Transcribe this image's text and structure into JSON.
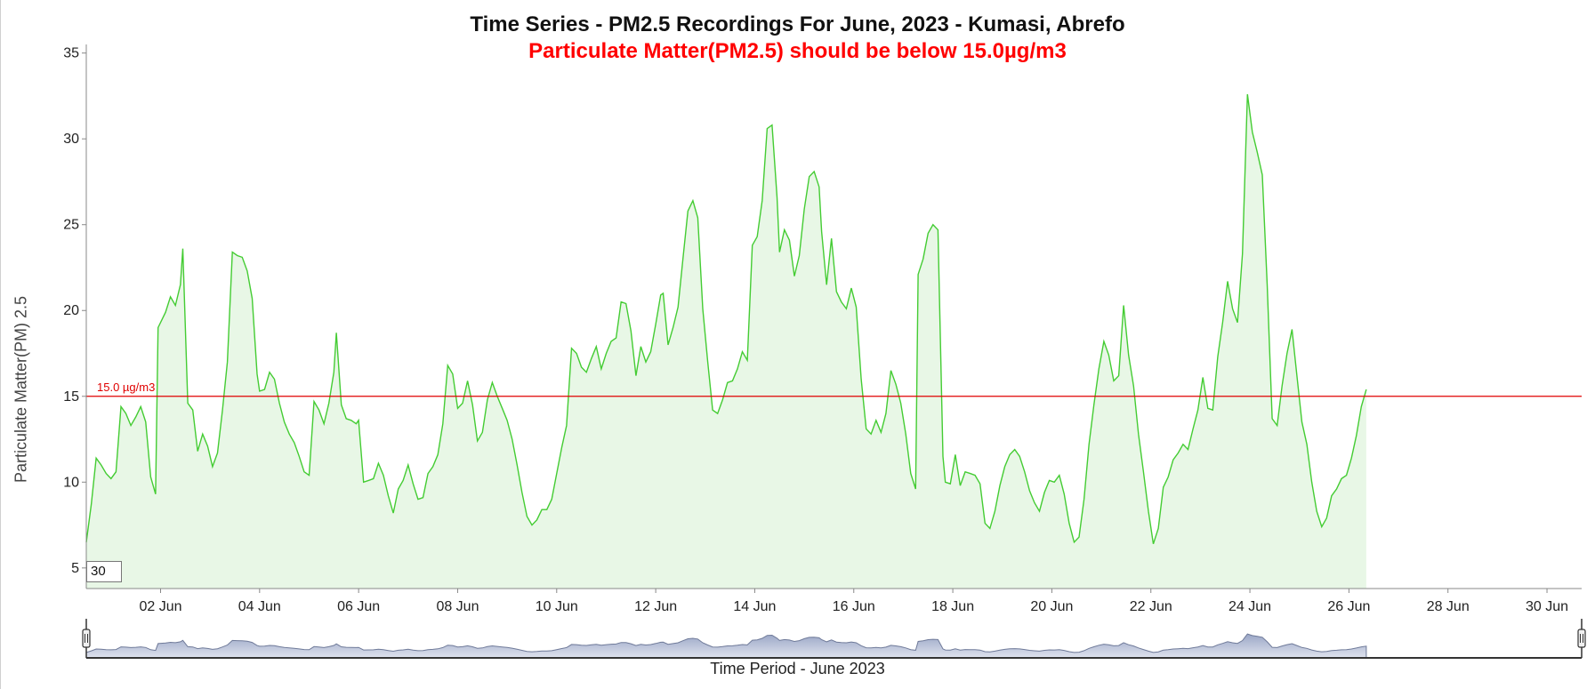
{
  "chart_data": {
    "type": "area",
    "title": "Time Series - PM2.5 Recordings For June, 2023 - Kumasi, Abrefo",
    "subtitle": "Particulate Matter(PM2.5) should be below 15.0µg/m3",
    "xlabel": "Time Period - June 2023",
    "ylabel": "Particulate Matter(PM) 2.5",
    "x_range_days": [
      0.5,
      30.7
    ],
    "ylim": [
      3.8,
      35.5
    ],
    "y_ticks": [
      5,
      10,
      15,
      20,
      25,
      30,
      35
    ],
    "x_tick_labels": [
      {
        "day": 2,
        "label": "02 Jun"
      },
      {
        "day": 4,
        "label": "04 Jun"
      },
      {
        "day": 6,
        "label": "06 Jun"
      },
      {
        "day": 8,
        "label": "08 Jun"
      },
      {
        "day": 10,
        "label": "10 Jun"
      },
      {
        "day": 12,
        "label": "12 Jun"
      },
      {
        "day": 14,
        "label": "14 Jun"
      },
      {
        "day": 16,
        "label": "16 Jun"
      },
      {
        "day": 18,
        "label": "18 Jun"
      },
      {
        "day": 20,
        "label": "20 Jun"
      },
      {
        "day": 22,
        "label": "22 Jun"
      },
      {
        "day": 24,
        "label": "24 Jun"
      },
      {
        "day": 26,
        "label": "26 Jun"
      },
      {
        "day": 28,
        "label": "28 Jun"
      },
      {
        "day": 30,
        "label": "30 Jun"
      }
    ],
    "threshold": {
      "value": 15.0,
      "label": "15.0 µg/m3",
      "color": "#e00000"
    },
    "series": [
      {
        "line_color": "#44cc33",
        "fill_color": "#e8f7e6",
        "points": [
          [
            0.5,
            6.5
          ],
          [
            0.6,
            8.7
          ],
          [
            0.7,
            11.4
          ],
          [
            0.8,
            11.0
          ],
          [
            0.9,
            10.5
          ],
          [
            1.0,
            10.2
          ],
          [
            1.1,
            10.6
          ],
          [
            1.2,
            14.4
          ],
          [
            1.3,
            14.0
          ],
          [
            1.4,
            13.3
          ],
          [
            1.5,
            13.8
          ],
          [
            1.6,
            14.4
          ],
          [
            1.7,
            13.5
          ],
          [
            1.8,
            10.3
          ],
          [
            1.9,
            9.3
          ],
          [
            1.95,
            19.0
          ],
          [
            2.1,
            19.9
          ],
          [
            2.2,
            20.8
          ],
          [
            2.3,
            20.3
          ],
          [
            2.4,
            21.5
          ],
          [
            2.45,
            23.6
          ],
          [
            2.55,
            14.6
          ],
          [
            2.65,
            14.2
          ],
          [
            2.75,
            11.8
          ],
          [
            2.85,
            12.8
          ],
          [
            2.95,
            12.1
          ],
          [
            3.05,
            10.9
          ],
          [
            3.15,
            11.7
          ],
          [
            3.25,
            14.2
          ],
          [
            3.35,
            17.0
          ],
          [
            3.45,
            23.4
          ],
          [
            3.55,
            23.2
          ],
          [
            3.65,
            23.1
          ],
          [
            3.75,
            22.3
          ],
          [
            3.85,
            20.7
          ],
          [
            3.95,
            16.3
          ],
          [
            4.0,
            15.3
          ],
          [
            4.1,
            15.4
          ],
          [
            4.2,
            16.4
          ],
          [
            4.3,
            16.0
          ],
          [
            4.4,
            14.6
          ],
          [
            4.5,
            13.5
          ],
          [
            4.6,
            12.8
          ],
          [
            4.7,
            12.3
          ],
          [
            4.8,
            11.5
          ],
          [
            4.9,
            10.6
          ],
          [
            5.0,
            10.4
          ],
          [
            5.1,
            14.7
          ],
          [
            5.2,
            14.2
          ],
          [
            5.3,
            13.4
          ],
          [
            5.4,
            14.6
          ],
          [
            5.5,
            16.4
          ],
          [
            5.55,
            18.7
          ],
          [
            5.65,
            14.5
          ],
          [
            5.75,
            13.7
          ],
          [
            5.85,
            13.6
          ],
          [
            5.95,
            13.4
          ],
          [
            6.0,
            13.6
          ],
          [
            6.1,
            10.0
          ],
          [
            6.2,
            10.1
          ],
          [
            6.3,
            10.2
          ],
          [
            6.4,
            11.1
          ],
          [
            6.5,
            10.4
          ],
          [
            6.6,
            9.2
          ],
          [
            6.7,
            8.2
          ],
          [
            6.8,
            9.6
          ],
          [
            6.9,
            10.1
          ],
          [
            7.0,
            11.0
          ],
          [
            7.1,
            9.9
          ],
          [
            7.2,
            9.0
          ],
          [
            7.3,
            9.1
          ],
          [
            7.4,
            10.5
          ],
          [
            7.5,
            10.9
          ],
          [
            7.6,
            11.6
          ],
          [
            7.7,
            13.4
          ],
          [
            7.8,
            16.8
          ],
          [
            7.9,
            16.3
          ],
          [
            8.0,
            14.3
          ],
          [
            8.1,
            14.6
          ],
          [
            8.2,
            15.9
          ],
          [
            8.3,
            14.5
          ],
          [
            8.4,
            12.4
          ],
          [
            8.5,
            12.9
          ],
          [
            8.6,
            14.8
          ],
          [
            8.7,
            15.8
          ],
          [
            8.8,
            15.0
          ],
          [
            8.9,
            14.3
          ],
          [
            9.0,
            13.6
          ],
          [
            9.1,
            12.5
          ],
          [
            9.2,
            11.0
          ],
          [
            9.3,
            9.4
          ],
          [
            9.4,
            8.0
          ],
          [
            9.5,
            7.5
          ],
          [
            9.6,
            7.8
          ],
          [
            9.7,
            8.4
          ],
          [
            9.8,
            8.4
          ],
          [
            9.9,
            9.0
          ],
          [
            10.0,
            10.5
          ],
          [
            10.1,
            12.0
          ],
          [
            10.2,
            13.3
          ],
          [
            10.3,
            17.8
          ],
          [
            10.4,
            17.5
          ],
          [
            10.5,
            16.7
          ],
          [
            10.6,
            16.4
          ],
          [
            10.7,
            17.2
          ],
          [
            10.8,
            17.9
          ],
          [
            10.9,
            16.6
          ],
          [
            11.0,
            17.5
          ],
          [
            11.1,
            18.2
          ],
          [
            11.2,
            18.4
          ],
          [
            11.3,
            20.5
          ],
          [
            11.4,
            20.4
          ],
          [
            11.5,
            18.8
          ],
          [
            11.6,
            16.2
          ],
          [
            11.7,
            17.9
          ],
          [
            11.8,
            17.0
          ],
          [
            11.9,
            17.6
          ],
          [
            12.0,
            19.2
          ],
          [
            12.1,
            20.9
          ],
          [
            12.15,
            21.0
          ],
          [
            12.25,
            18.0
          ],
          [
            12.35,
            19.0
          ],
          [
            12.45,
            20.2
          ],
          [
            12.55,
            23.0
          ],
          [
            12.65,
            25.8
          ],
          [
            12.75,
            26.4
          ],
          [
            12.85,
            25.4
          ],
          [
            12.95,
            20.1
          ],
          [
            13.05,
            17.0
          ],
          [
            13.15,
            14.2
          ],
          [
            13.25,
            14.0
          ],
          [
            13.35,
            14.8
          ],
          [
            13.45,
            15.8
          ],
          [
            13.55,
            15.9
          ],
          [
            13.65,
            16.6
          ],
          [
            13.75,
            17.6
          ],
          [
            13.85,
            17.1
          ],
          [
            13.95,
            23.8
          ],
          [
            14.05,
            24.3
          ],
          [
            14.15,
            26.4
          ],
          [
            14.25,
            30.6
          ],
          [
            14.35,
            30.8
          ],
          [
            14.45,
            26.6
          ],
          [
            14.5,
            23.4
          ],
          [
            14.6,
            24.7
          ],
          [
            14.7,
            24.1
          ],
          [
            14.8,
            22.0
          ],
          [
            14.9,
            23.2
          ],
          [
            15.0,
            25.9
          ],
          [
            15.1,
            27.8
          ],
          [
            15.2,
            28.1
          ],
          [
            15.3,
            27.2
          ],
          [
            15.35,
            24.6
          ],
          [
            15.45,
            21.5
          ],
          [
            15.55,
            24.2
          ],
          [
            15.65,
            21.1
          ],
          [
            15.75,
            20.5
          ],
          [
            15.85,
            20.1
          ],
          [
            15.95,
            21.3
          ],
          [
            16.05,
            20.2
          ],
          [
            16.15,
            16.0
          ],
          [
            16.25,
            13.1
          ],
          [
            16.35,
            12.8
          ],
          [
            16.45,
            13.6
          ],
          [
            16.55,
            12.9
          ],
          [
            16.65,
            14.0
          ],
          [
            16.75,
            16.5
          ],
          [
            16.85,
            15.7
          ],
          [
            16.95,
            14.6
          ],
          [
            17.05,
            12.8
          ],
          [
            17.15,
            10.5
          ],
          [
            17.25,
            9.6
          ],
          [
            17.3,
            22.1
          ],
          [
            17.4,
            23.0
          ],
          [
            17.5,
            24.5
          ],
          [
            17.6,
            25.0
          ],
          [
            17.7,
            24.7
          ],
          [
            17.8,
            11.5
          ],
          [
            17.85,
            10.0
          ],
          [
            17.95,
            9.9
          ],
          [
            18.05,
            11.6
          ],
          [
            18.15,
            9.8
          ],
          [
            18.25,
            10.6
          ],
          [
            18.35,
            10.5
          ],
          [
            18.45,
            10.4
          ],
          [
            18.55,
            9.9
          ],
          [
            18.65,
            7.6
          ],
          [
            18.75,
            7.3
          ],
          [
            18.85,
            8.3
          ],
          [
            18.95,
            9.8
          ],
          [
            19.05,
            10.9
          ],
          [
            19.15,
            11.6
          ],
          [
            19.25,
            11.9
          ],
          [
            19.35,
            11.5
          ],
          [
            19.45,
            10.6
          ],
          [
            19.55,
            9.5
          ],
          [
            19.65,
            8.8
          ],
          [
            19.75,
            8.3
          ],
          [
            19.85,
            9.4
          ],
          [
            19.95,
            10.1
          ],
          [
            20.05,
            10.0
          ],
          [
            20.15,
            10.4
          ],
          [
            20.25,
            9.3
          ],
          [
            20.35,
            7.6
          ],
          [
            20.45,
            6.5
          ],
          [
            20.55,
            6.8
          ],
          [
            20.65,
            9.0
          ],
          [
            20.75,
            12.2
          ],
          [
            20.85,
            14.5
          ],
          [
            20.95,
            16.6
          ],
          [
            21.05,
            18.2
          ],
          [
            21.15,
            17.4
          ],
          [
            21.25,
            15.9
          ],
          [
            21.35,
            16.2
          ],
          [
            21.45,
            20.3
          ],
          [
            21.55,
            17.4
          ],
          [
            21.65,
            15.6
          ],
          [
            21.75,
            12.8
          ],
          [
            21.85,
            10.6
          ],
          [
            21.95,
            8.3
          ],
          [
            22.05,
            6.4
          ],
          [
            22.15,
            7.3
          ],
          [
            22.25,
            9.7
          ],
          [
            22.35,
            10.3
          ],
          [
            22.45,
            11.3
          ],
          [
            22.55,
            11.7
          ],
          [
            22.65,
            12.2
          ],
          [
            22.75,
            11.9
          ],
          [
            22.85,
            13.1
          ],
          [
            22.95,
            14.2
          ],
          [
            23.05,
            16.1
          ],
          [
            23.15,
            14.3
          ],
          [
            23.25,
            14.2
          ],
          [
            23.35,
            17.3
          ],
          [
            23.45,
            19.3
          ],
          [
            23.55,
            21.7
          ],
          [
            23.65,
            20.1
          ],
          [
            23.75,
            19.3
          ],
          [
            23.85,
            23.3
          ],
          [
            23.95,
            32.6
          ],
          [
            24.05,
            30.4
          ],
          [
            24.15,
            29.2
          ],
          [
            24.25,
            27.9
          ],
          [
            24.35,
            21.5
          ],
          [
            24.45,
            13.7
          ],
          [
            24.55,
            13.3
          ],
          [
            24.65,
            15.6
          ],
          [
            24.75,
            17.5
          ],
          [
            24.85,
            18.9
          ],
          [
            24.95,
            16.2
          ],
          [
            25.05,
            13.5
          ],
          [
            25.15,
            12.2
          ],
          [
            25.25,
            10.0
          ],
          [
            25.35,
            8.3
          ],
          [
            25.45,
            7.4
          ],
          [
            25.55,
            7.9
          ],
          [
            25.65,
            9.2
          ],
          [
            25.75,
            9.6
          ],
          [
            25.85,
            10.2
          ],
          [
            25.95,
            10.4
          ],
          [
            26.05,
            11.4
          ],
          [
            26.15,
            12.7
          ],
          [
            26.25,
            14.4
          ],
          [
            26.35,
            15.4
          ]
        ]
      }
    ],
    "navigator": {
      "from_day": 0.5,
      "to_day": 30.7
    }
  },
  "zoom_input": {
    "value": "30"
  }
}
